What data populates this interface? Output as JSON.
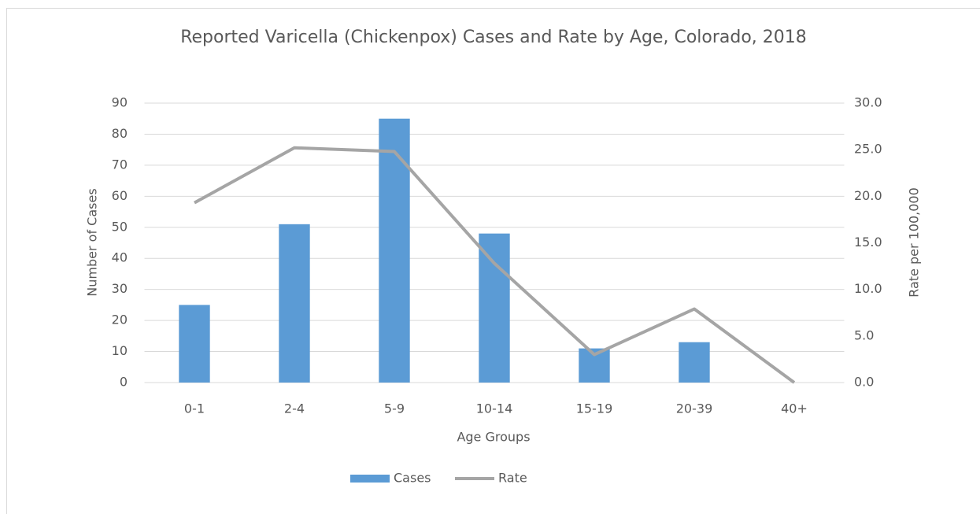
{
  "chart_data": {
    "type": "bar_line",
    "title": "Reported Varicella (Chickenpox) Cases and Rate by Age, Colorado, 2018",
    "x_label": "Age Groups",
    "y_label": "Number of Cases",
    "y2_label": "Rate per 100,000",
    "categories": [
      "0-1",
      "2-4",
      "5-9",
      "10-14",
      "15-19",
      "20-39",
      "40+"
    ],
    "series": [
      {
        "name": "Cases",
        "type": "bar",
        "color": "#5b9bd5",
        "values": [
          25,
          51,
          85,
          48,
          11,
          13,
          0
        ]
      },
      {
        "name": "Rate",
        "type": "line",
        "axis": "y2",
        "color": "#a5a5a5",
        "values": [
          19.3,
          25.2,
          24.8,
          12.8,
          3.0,
          7.9,
          0
        ]
      }
    ],
    "ylim": [
      0,
      90
    ],
    "yticks": [
      0,
      10,
      20,
      30,
      40,
      50,
      60,
      70,
      80,
      90
    ],
    "y2lim": [
      0,
      30
    ],
    "y2ticks": [
      {
        "value": 0,
        "label": "0.0"
      },
      {
        "value": 5,
        "label": "5.0"
      },
      {
        "value": 10,
        "label": "10.0"
      },
      {
        "value": 15,
        "label": "15.0"
      },
      {
        "value": 20,
        "label": "20.0"
      },
      {
        "value": 25,
        "label": "25.0"
      },
      {
        "value": 30,
        "label": "30.0"
      }
    ],
    "grid": true,
    "legend": "bottom"
  }
}
